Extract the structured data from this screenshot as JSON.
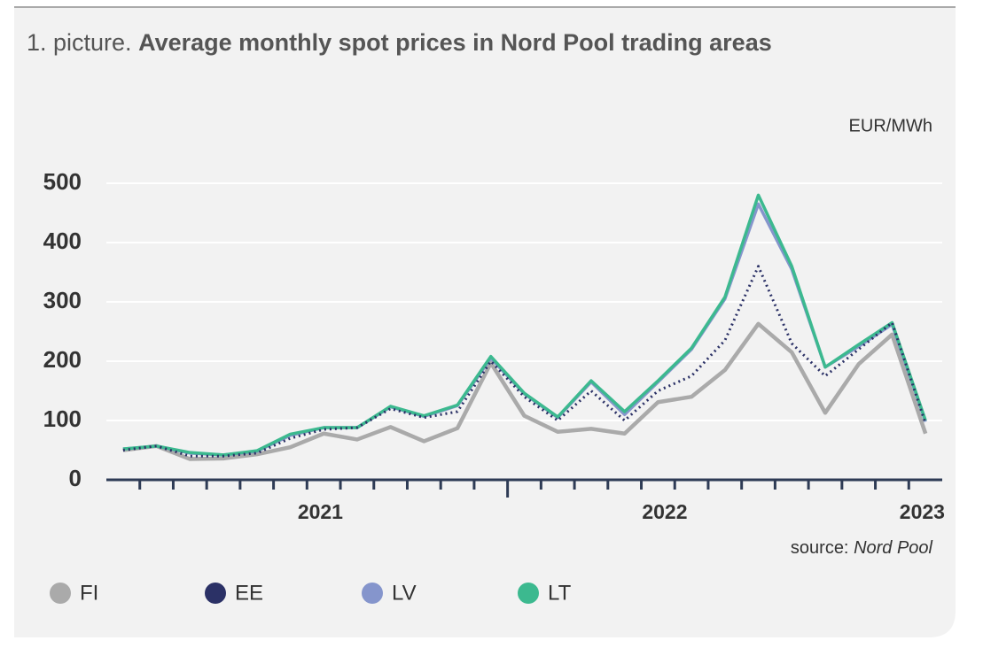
{
  "chart_data": {
    "type": "line",
    "title_label": "1. picture.",
    "title": "Average monthly spot prices in Nord Pool trading areas",
    "unit": "EUR/MWh",
    "source_label": "source:",
    "source": "Nord Pool",
    "categories": [
      null,
      null,
      null,
      null,
      null,
      null,
      null,
      null,
      null,
      null,
      null,
      null,
      null,
      null,
      null,
      null,
      null,
      null,
      null,
      null,
      null,
      null,
      null,
      null,
      null
    ],
    "series": [
      {
        "name": "FI",
        "color": "#aaaaaa",
        "values": [
          50,
          57,
          35,
          36,
          43,
          55,
          78,
          68,
          89,
          65,
          87,
          197,
          108,
          81,
          86,
          78,
          131,
          140,
          185,
          263,
          215,
          113,
          195,
          245,
          78
        ]
      },
      {
        "name": "EE",
        "color": "#2b3166",
        "dash": "dotted",
        "values": [
          50,
          57,
          40,
          40,
          45,
          70,
          85,
          88,
          120,
          105,
          115,
          200,
          140,
          100,
          150,
          100,
          150,
          175,
          235,
          360,
          230,
          175,
          220,
          265,
          95
        ]
      },
      {
        "name": "LV",
        "color": "#8595cc",
        "values": [
          52,
          57,
          45,
          42,
          48,
          75,
          88,
          88,
          123,
          107,
          125,
          205,
          145,
          105,
          165,
          110,
          165,
          220,
          305,
          465,
          355,
          190,
          225,
          262,
          98
        ]
      },
      {
        "name": "LT",
        "color": "#3cb98f",
        "values": [
          52,
          57,
          46,
          42,
          49,
          77,
          88,
          88,
          124,
          108,
          126,
          208,
          146,
          106,
          167,
          115,
          167,
          222,
          308,
          480,
          360,
          190,
          228,
          265,
          100
        ]
      }
    ],
    "xlim": [
      -0.5,
      24.5
    ],
    "xticks": [
      {
        "value": 5.9,
        "label": "2021"
      },
      {
        "value": 16.2,
        "label": "2022"
      },
      {
        "value": 23.9,
        "label": "2023"
      }
    ],
    "ylim": [
      0,
      500
    ],
    "yticks": [
      0,
      100,
      200,
      300,
      400,
      500
    ],
    "grid": true,
    "legend": "bottom"
  }
}
